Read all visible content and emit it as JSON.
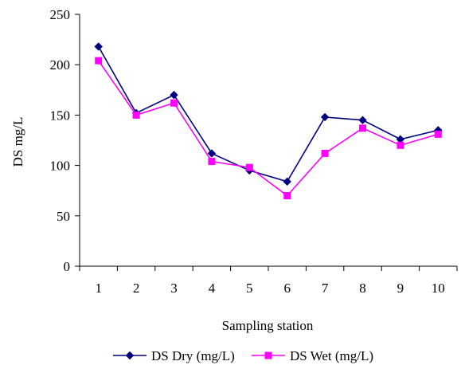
{
  "chart_data": {
    "type": "line",
    "title": "",
    "xlabel": "Sampling station",
    "ylabel": "DS mg/L",
    "categories": [
      "1",
      "2",
      "3",
      "4",
      "5",
      "6",
      "7",
      "8",
      "9",
      "10"
    ],
    "ylim": [
      0,
      250
    ],
    "yticks": [
      "0",
      "50",
      "100",
      "150",
      "200",
      "250"
    ],
    "grid": false,
    "legend_position": "bottom",
    "series": [
      {
        "name": "DS Dry (mg/L)",
        "color": "#000080",
        "marker": "diamond",
        "values": [
          218,
          152,
          170,
          112,
          95,
          84,
          148,
          145,
          126,
          135
        ]
      },
      {
        "name": "DS Wet (mg/L)",
        "color": "#FF00FF",
        "marker": "square",
        "values": [
          204,
          150,
          162,
          104,
          98,
          70,
          112,
          137,
          120,
          131
        ]
      }
    ]
  }
}
